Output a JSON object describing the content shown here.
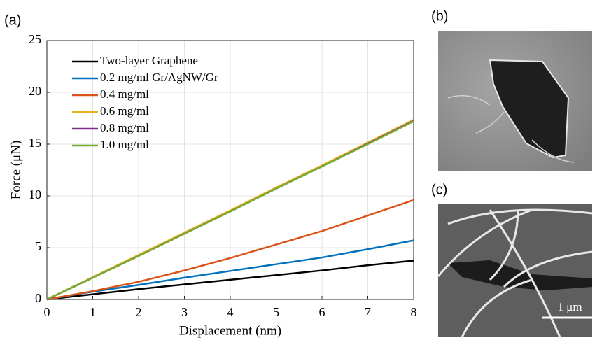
{
  "chart_data": {
    "type": "line",
    "x_label": "Displacement (nm)",
    "y_label": "Force (μN)",
    "x": [
      0,
      1,
      2,
      3,
      4,
      5,
      6,
      7,
      8
    ],
    "series": [
      {
        "name": "Two-layer Graphene",
        "color": "#000000",
        "values": [
          0,
          0.5,
          1.0,
          1.45,
          1.9,
          2.35,
          2.8,
          3.3,
          3.75
        ]
      },
      {
        "name": "0.2 mg/ml Gr/AgNW/Gr",
        "color": "#0072bd",
        "values": [
          0,
          0.75,
          1.4,
          2.1,
          2.75,
          3.4,
          4.05,
          4.85,
          5.7
        ]
      },
      {
        "name": "0.4 mg/ml",
        "color": "#d95319",
        "values": [
          0,
          0.8,
          1.7,
          2.8,
          4.0,
          5.3,
          6.6,
          8.1,
          9.6
        ]
      },
      {
        "name": "0.6 mg/ml",
        "color": "#edb120",
        "values": [
          0,
          2.15,
          4.3,
          6.45,
          8.6,
          10.8,
          12.95,
          15.15,
          17.35
        ]
      },
      {
        "name": "0.8 mg/ml",
        "color": "#7e2f8e",
        "values": [
          0,
          2.1,
          4.2,
          6.35,
          8.5,
          10.7,
          12.85,
          15.05,
          17.25
        ]
      },
      {
        "name": "1.0 mg/ml",
        "color": "#77ac30",
        "values": [
          0,
          2.1,
          4.2,
          6.35,
          8.5,
          10.7,
          12.85,
          15.0,
          17.2
        ]
      }
    ],
    "xlim": [
      0,
      8
    ],
    "ylim": [
      0,
      25
    ],
    "xticks": [
      0,
      1,
      2,
      3,
      4,
      5,
      6,
      7,
      8
    ],
    "yticks": [
      0,
      5,
      10,
      15,
      20,
      25
    ],
    "grid": true,
    "legend": "upper-left"
  },
  "panel_labels": [
    "(a)",
    "(b)",
    "(c)"
  ],
  "scale_bar": "1 μm"
}
